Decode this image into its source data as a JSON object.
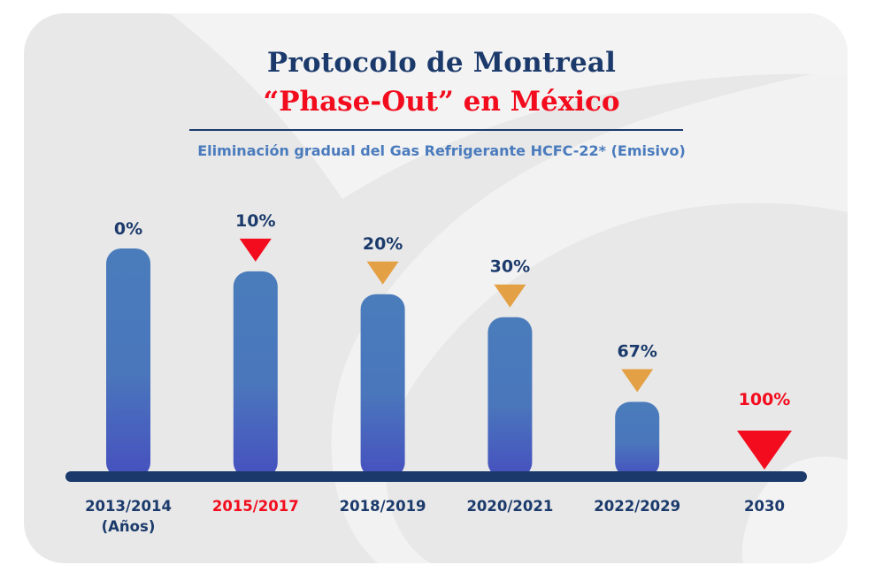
{
  "header": {
    "title_line1": "Protocolo de Montreal",
    "title_line2": "“Phase-Out” en México",
    "subtitle": "Eliminación gradual del Gas Refrigerante HCFC-22* (Emisivo)"
  },
  "colors": {
    "navy": "#1b3a6b",
    "red": "#f20c1d",
    "orange": "#e4a044",
    "bar_top": "#4a7cbb",
    "bar_bottom": "#4650bf",
    "subtitle_blue": "#4a7bbd",
    "card_bg": "#e8e8e8",
    "card_highlight": "#f3f3f3"
  },
  "chart_data": {
    "type": "bar",
    "title": "Protocolo de Montreal “Phase-Out” en México",
    "subtitle": "Eliminación gradual del Gas Refrigerante HCFC-22* (Emisivo)",
    "xlabel": "(Años)",
    "ylabel": "",
    "categories": [
      "2013/2014",
      "2015/2017",
      "2018/2019",
      "2020/2021",
      "2022/2029",
      "2030"
    ],
    "reduction_percent": [
      0,
      10,
      20,
      30,
      67,
      100
    ],
    "data_labels": [
      "0%",
      "10%",
      "20%",
      "30%",
      "67%",
      "100%"
    ],
    "remaining_percent": [
      100,
      90,
      80,
      70,
      33,
      0
    ],
    "highlighted_categories": [
      "2015/2017",
      "2030"
    ],
    "markers": [
      "none",
      "red-triangle",
      "orange-triangle",
      "orange-triangle",
      "orange-triangle",
      "red-triangle-large"
    ],
    "ylim": [
      0,
      100
    ],
    "grid": false,
    "legend": "none"
  }
}
